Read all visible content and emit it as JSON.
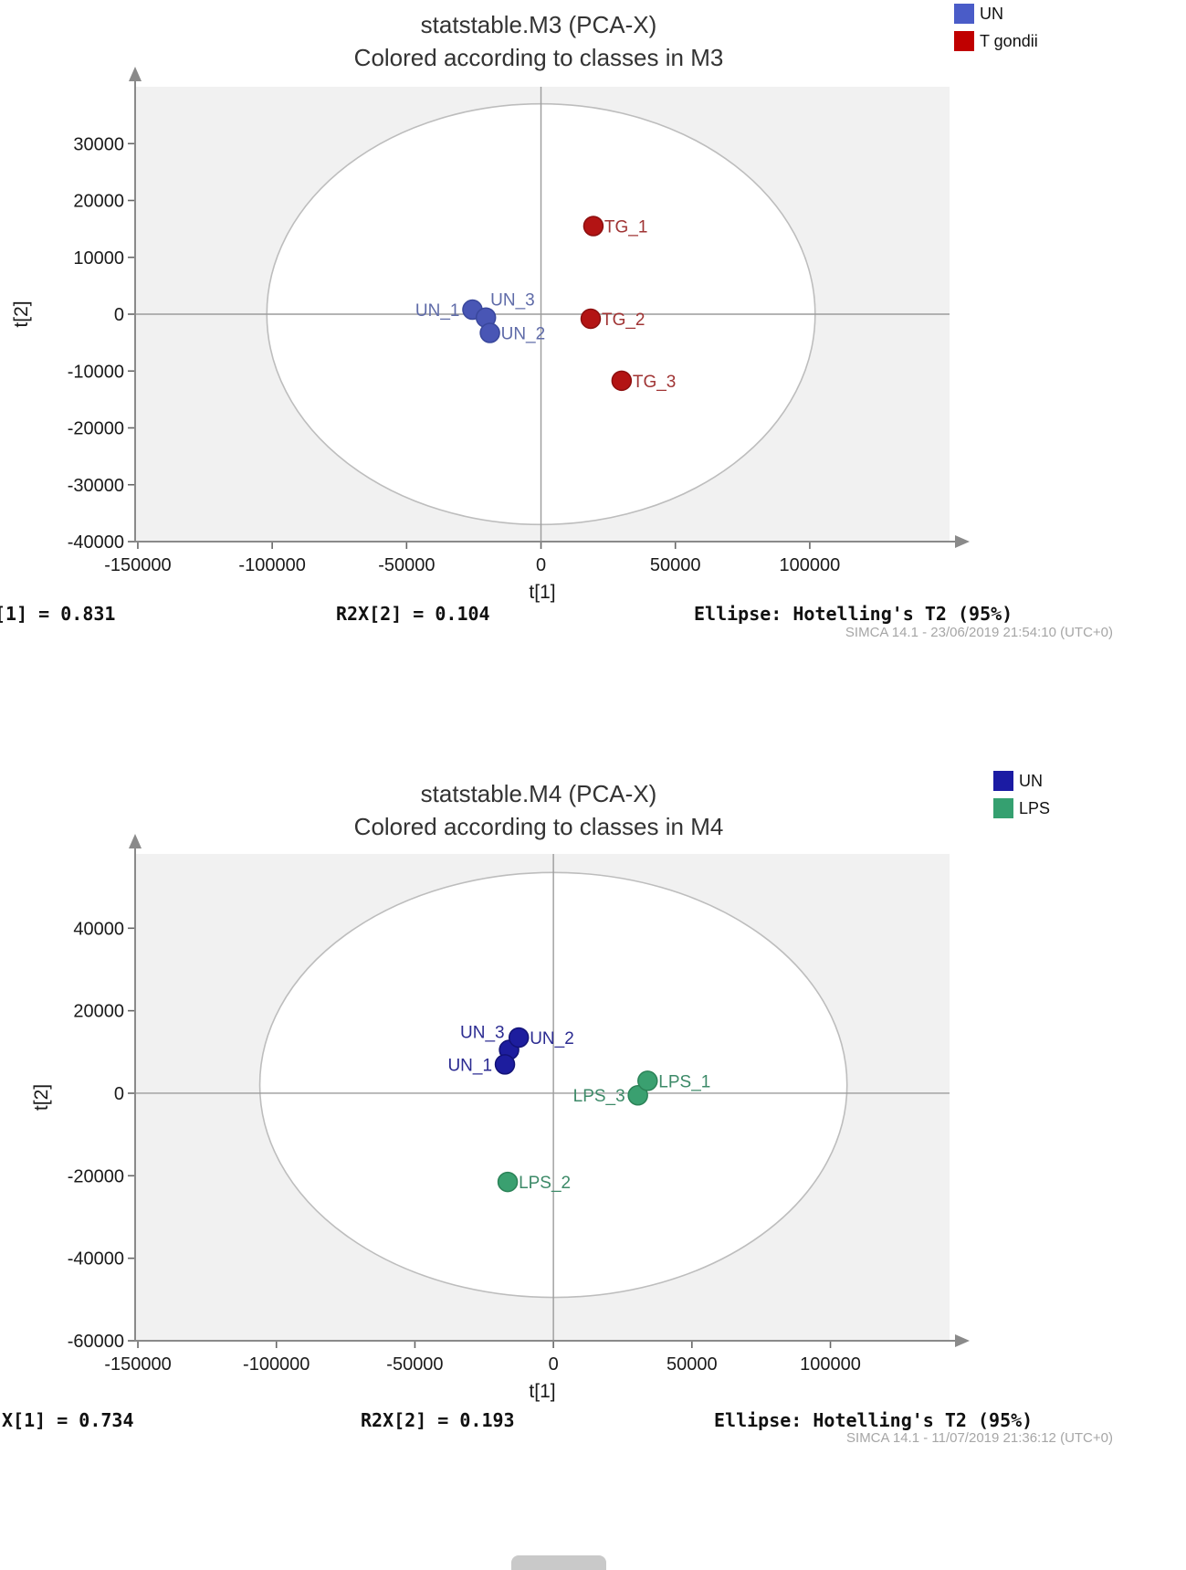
{
  "chart_data": [
    {
      "type": "scatter",
      "title": "statstable.M3 (PCA-X)",
      "subtitle": "Colored according to classes in M3",
      "xlabel": "t[1]",
      "ylabel": "t[2]",
      "xlim": [
        -151000,
        152000
      ],
      "ylim": [
        -40000,
        40000
      ],
      "xticks": [
        -150000,
        -100000,
        -50000,
        0,
        50000,
        100000
      ],
      "yticks": [
        30000,
        20000,
        10000,
        0,
        -10000,
        -20000,
        -30000,
        -40000
      ],
      "grid": false,
      "hotelling_ellipse": {
        "cx": 0,
        "cy": 0,
        "rx": 102000,
        "ry": 37000
      },
      "legend": [
        {
          "label": "UN",
          "color": "#4a5cc8"
        },
        {
          "label": "T gondii",
          "color": "#c00000"
        }
      ],
      "series": [
        {
          "name": "UN",
          "color": "#4956b5",
          "stroke": "#39479c",
          "label_color": "#5f6ba8",
          "points": [
            {
              "label": "UN_1",
              "x": -25500,
              "y": 800,
              "label_side": "left"
            },
            {
              "label": "UN_3",
              "x": -20500,
              "y": -600,
              "label_side": "top-right"
            },
            {
              "label": "UN_2",
              "x": -19000,
              "y": -3300,
              "label_side": "right"
            }
          ]
        },
        {
          "name": "T gondii",
          "color": "#b31414",
          "stroke": "#8c0f0f",
          "label_color": "#a03434",
          "points": [
            {
              "label": "TG_1",
              "x": 19500,
              "y": 15500,
              "label_side": "right"
            },
            {
              "label": "TG_2",
              "x": 18500,
              "y": -800,
              "label_side": "right"
            },
            {
              "label": "TG_3",
              "x": 30000,
              "y": -11700,
              "label_side": "right"
            }
          ]
        }
      ],
      "footer": {
        "stat1": "[1] = 0.831",
        "stat2": "R2X[2] = 0.104",
        "ellipse_note": "Ellipse: Hotelling's T2 (95%)",
        "stamp": "SIMCA 14.1 - 23/06/2019 21:54:10 (UTC+0)"
      }
    },
    {
      "type": "scatter",
      "title": "statstable.M4 (PCA-X)",
      "subtitle": "Colored according to classes in M4",
      "xlabel": "t[1]",
      "ylabel": "t[2]",
      "xlim": [
        -151000,
        143000
      ],
      "ylim": [
        -60000,
        58000
      ],
      "xticks": [
        -150000,
        -100000,
        -50000,
        0,
        50000,
        100000
      ],
      "yticks": [
        40000,
        20000,
        0,
        -20000,
        -40000,
        -60000
      ],
      "grid": false,
      "hotelling_ellipse": {
        "cx": 0,
        "cy": 2000,
        "rx": 106000,
        "ry": 51500
      },
      "legend": [
        {
          "label": "UN",
          "color": "#1b1ba3"
        },
        {
          "label": "LPS",
          "color": "#35a070"
        }
      ],
      "series": [
        {
          "name": "UN",
          "color": "#1d1d9e",
          "stroke": "#121277",
          "label_color": "#2b2b91",
          "points": [
            {
              "label": "UN_3",
              "x": -16000,
              "y": 10500,
              "label_side": "top-left"
            },
            {
              "label": "UN_1",
              "x": -17500,
              "y": 7000,
              "label_side": "left"
            },
            {
              "label": "UN_2",
              "x": -12500,
              "y": 13500,
              "label_side": "right"
            }
          ]
        },
        {
          "name": "LPS",
          "color": "#3aa070",
          "stroke": "#2b8257",
          "label_color": "#3d8a68",
          "points": [
            {
              "label": "LPS_3",
              "x": 30500,
              "y": -500,
              "label_side": "left"
            },
            {
              "label": "LPS_1",
              "x": 34000,
              "y": 3000,
              "label_side": "right"
            },
            {
              "label": "LPS_2",
              "x": -16500,
              "y": -21500,
              "label_side": "right"
            }
          ]
        }
      ],
      "footer": {
        "stat1": "X[1] = 0.734",
        "stat2": "R2X[2] = 0.193",
        "ellipse_note": "Ellipse: Hotelling's T2 (95%)",
        "stamp": "SIMCA 14.1 - 11/07/2019 21:36:12 (UTC+0)"
      }
    }
  ]
}
